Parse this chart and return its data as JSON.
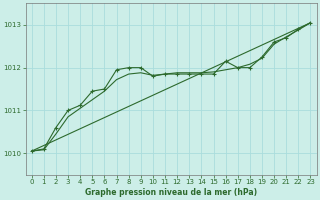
{
  "title": "Graphe pression niveau de la mer (hPa)",
  "background_color": "#cceee8",
  "line_color": "#2d6a2d",
  "grid_color": "#aadddd",
  "text_color": "#2d6a2d",
  "xlim": [
    -0.5,
    23.5
  ],
  "ylim": [
    1009.5,
    1013.5
  ],
  "yticks": [
    1010,
    1011,
    1012,
    1013
  ],
  "xticks": [
    0,
    1,
    2,
    3,
    4,
    5,
    6,
    7,
    8,
    9,
    10,
    11,
    12,
    13,
    14,
    15,
    16,
    17,
    18,
    19,
    20,
    21,
    22,
    23
  ],
  "main_x": [
    0,
    1,
    2,
    3,
    4,
    5,
    6,
    7,
    8,
    9,
    10,
    11,
    12,
    13,
    14,
    15,
    16,
    17,
    18,
    19,
    20,
    21,
    22,
    23
  ],
  "main_y": [
    1010.05,
    1010.1,
    1010.6,
    1011.0,
    1011.12,
    1011.45,
    1011.5,
    1011.95,
    1012.0,
    1012.0,
    1011.8,
    1011.85,
    1011.85,
    1011.85,
    1011.85,
    1011.85,
    1012.15,
    1012.0,
    1012.0,
    1012.25,
    1012.6,
    1012.7,
    1012.9,
    1013.05
  ],
  "smooth_x": [
    0,
    1,
    2,
    3,
    4,
    5,
    6,
    7,
    8,
    9,
    10,
    11,
    12,
    13,
    14,
    15,
    16,
    17,
    18,
    19,
    20,
    21,
    22,
    23
  ],
  "smooth_y": [
    1010.05,
    1010.08,
    1010.45,
    1010.85,
    1011.05,
    1011.25,
    1011.45,
    1011.72,
    1011.85,
    1011.88,
    1011.82,
    1011.85,
    1011.88,
    1011.88,
    1011.88,
    1011.9,
    1011.95,
    1012.0,
    1012.08,
    1012.22,
    1012.55,
    1012.72,
    1012.88,
    1013.05
  ],
  "trend_x": [
    0,
    23
  ],
  "trend_y": [
    1010.05,
    1013.05
  ]
}
